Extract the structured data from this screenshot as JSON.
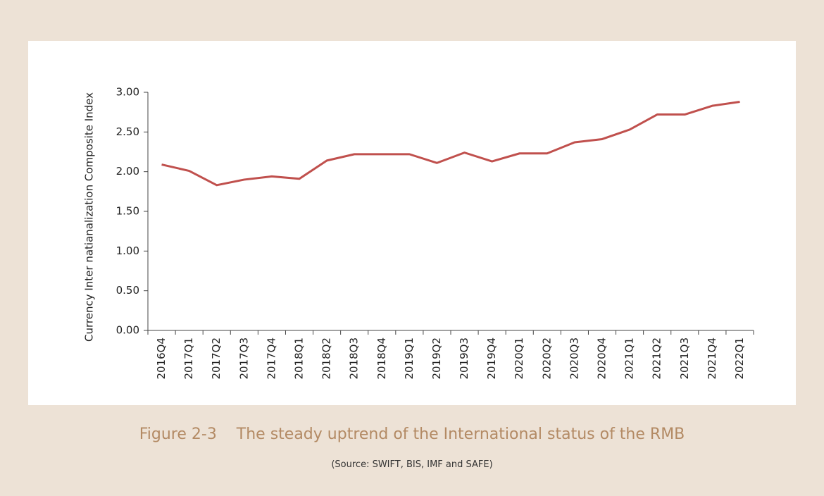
{
  "chart_data": {
    "type": "line",
    "y_label": "Currency Inter natianalization Composite Index",
    "categories": [
      "2016Q4",
      "2017Q1",
      "2017Q2",
      "2017Q3",
      "2017Q4",
      "2018Q1",
      "2018Q2",
      "2018Q3",
      "2018Q4",
      "2019Q1",
      "2019Q2",
      "2019Q3",
      "2019Q4",
      "2020Q1",
      "2020Q2",
      "2020Q3",
      "2020Q4",
      "2021Q1",
      "2021Q2",
      "2021Q3",
      "2021Q4",
      "2022Q1"
    ],
    "series": [
      {
        "color": "#c0504d",
        "values": [
          2.09,
          2.01,
          1.83,
          1.9,
          1.94,
          1.91,
          2.14,
          2.22,
          2.22,
          2.22,
          2.11,
          2.24,
          2.13,
          2.23,
          2.23,
          2.37,
          2.41,
          2.53,
          2.72,
          2.72,
          2.83,
          2.88
        ]
      }
    ],
    "ylim": [
      0,
      3
    ],
    "yticks": [
      {
        "value": 0,
        "label": "0.00"
      },
      {
        "value": 0.5,
        "label": "0.50"
      },
      {
        "value": 1,
        "label": "1.00"
      },
      {
        "value": 1.5,
        "label": "1.50"
      },
      {
        "value": 2,
        "label": "2.00"
      },
      {
        "value": 2.5,
        "label": "2.50"
      },
      {
        "value": 3,
        "label": "3.00"
      }
    ],
    "caption": "Figure 2-3    The steady uptrend of the International status of the RMB",
    "source": "(Source: SWIFT, BIS, IMF and SAFE)"
  }
}
